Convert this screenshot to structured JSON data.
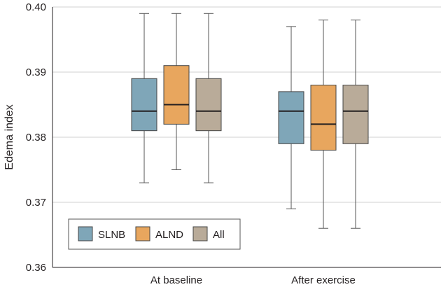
{
  "chart_data": {
    "type": "box",
    "title": "",
    "xlabel": "",
    "ylabel": "Edema index",
    "ylim": [
      0.36,
      0.4
    ],
    "yticks": [
      "0.36",
      "0.37",
      "0.38",
      "0.39",
      "0.40"
    ],
    "grid": "horizontal",
    "legend_position": "bottom-left",
    "categories": [
      "At baseline",
      "After exercise"
    ],
    "series": [
      {
        "name": "SLNB",
        "color": "#7fa6b8",
        "boxes": [
          {
            "min": 0.373,
            "q1": 0.381,
            "median": 0.384,
            "q3": 0.389,
            "max": 0.399
          },
          {
            "min": 0.369,
            "q1": 0.379,
            "median": 0.384,
            "q3": 0.387,
            "max": 0.397
          }
        ]
      },
      {
        "name": "ALND",
        "color": "#e8a65e",
        "boxes": [
          {
            "min": 0.375,
            "q1": 0.382,
            "median": 0.385,
            "q3": 0.391,
            "max": 0.399
          },
          {
            "min": 0.366,
            "q1": 0.378,
            "median": 0.382,
            "q3": 0.388,
            "max": 0.398
          }
        ]
      },
      {
        "name": "All",
        "color": "#b9ab99",
        "boxes": [
          {
            "min": 0.373,
            "q1": 0.381,
            "median": 0.384,
            "q3": 0.389,
            "max": 0.399
          },
          {
            "min": 0.366,
            "q1": 0.379,
            "median": 0.384,
            "q3": 0.388,
            "max": 0.398
          }
        ]
      }
    ]
  }
}
